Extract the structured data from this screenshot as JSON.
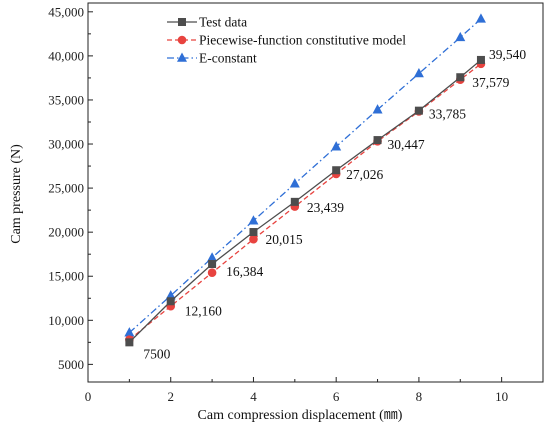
{
  "chart_data": {
    "type": "line",
    "xlabel": "Cam compression displacement (㎜)",
    "ylabel": "Cam pressure (N)",
    "xlim": [
      0,
      11
    ],
    "ylim": [
      3000,
      46000
    ],
    "xticks": [
      0,
      2,
      4,
      6,
      8,
      10
    ],
    "yticks": [
      5000,
      10000,
      15000,
      20000,
      25000,
      30000,
      35000,
      40000,
      45000
    ],
    "x_tick_labels": [
      "0",
      "2",
      "4",
      "6",
      "8",
      "10"
    ],
    "y_tick_labels": [
      "5000",
      "10,000",
      "15,000",
      "20,000",
      "25,000",
      "30,000",
      "35,000",
      "40,000",
      "45,000"
    ],
    "x": [
      1,
      2,
      3,
      4,
      5,
      6,
      7,
      8,
      9,
      9.5
    ],
    "legend_position": "top-left",
    "grid": false,
    "series": [
      {
        "name": "Test data",
        "color": "#4d4d4d",
        "marker": "square",
        "line_style": "solid",
        "values": [
          7500,
          12160,
          16384,
          20015,
          23439,
          27026,
          30447,
          33785,
          37579,
          39540
        ]
      },
      {
        "name": "Piecewise-function constitutive model",
        "color": "#e8433f",
        "marker": "circle",
        "line_style": "dashed",
        "values": [
          7800,
          11600,
          15400,
          19200,
          22900,
          26600,
          30300,
          33700,
          37300,
          39100
        ]
      },
      {
        "name": "E-constant",
        "color": "#2f6fd6",
        "marker": "triangle",
        "line_style": "dash-dot",
        "values": [
          8600,
          12800,
          17100,
          21300,
          25500,
          29700,
          33900,
          38000,
          42100,
          44200
        ]
      }
    ],
    "annotations": [
      {
        "text": "7500",
        "x": 1,
        "y": 7500
      },
      {
        "text": "12,160",
        "x": 2,
        "y": 12160
      },
      {
        "text": "16,384",
        "x": 3,
        "y": 16384
      },
      {
        "text": "20,015",
        "x": 4,
        "y": 20015
      },
      {
        "text": "23,439",
        "x": 5,
        "y": 23439
      },
      {
        "text": "27,026",
        "x": 6,
        "y": 27026
      },
      {
        "text": "30,447",
        "x": 7,
        "y": 30447
      },
      {
        "text": "33,785",
        "x": 8,
        "y": 33785
      },
      {
        "text": "37,579",
        "x": 9,
        "y": 37579
      },
      {
        "text": "39,540",
        "x": 9.5,
        "y": 39540
      }
    ]
  }
}
